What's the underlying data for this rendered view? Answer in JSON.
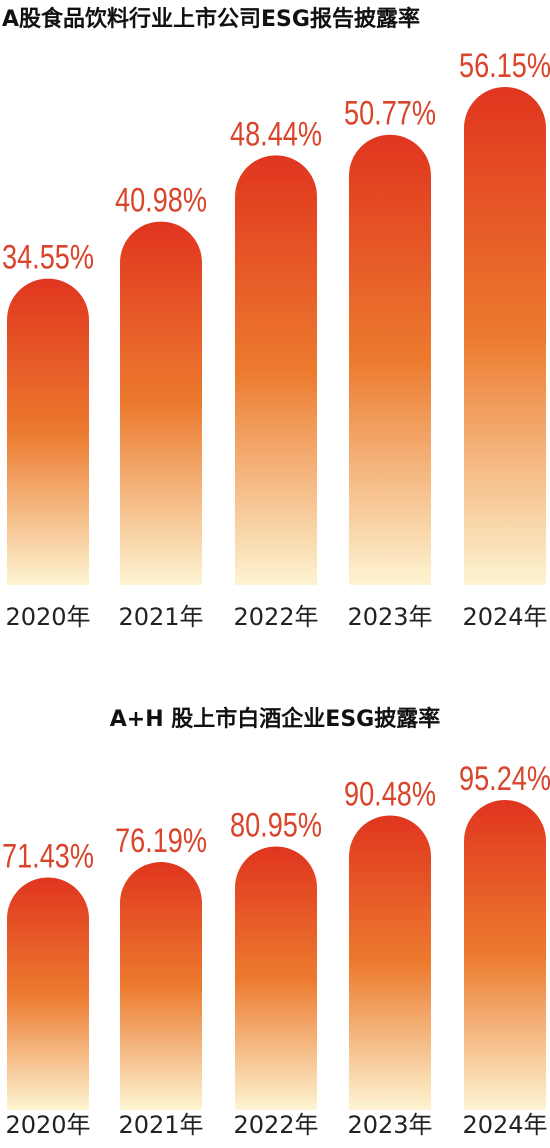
{
  "chart_data": [
    {
      "type": "bar",
      "title": "A股食品饮料行业上市公司ESG报告披露率",
      "categories": [
        "2020年",
        "2021年",
        "2022年",
        "2023年",
        "2024年"
      ],
      "values": [
        34.55,
        40.98,
        48.44,
        50.77,
        56.15
      ],
      "value_labels": [
        "34.55%",
        "40.98%",
        "48.44%",
        "50.77%",
        "56.15%"
      ],
      "gradient": [
        "#e0351f",
        "#ec7a2e",
        "#fdf4d2"
      ],
      "label_color": "#d9452b"
    },
    {
      "type": "bar",
      "title": "A+H 股上市白酒企业ESG披露率",
      "categories": [
        "2020年",
        "2021年",
        "2022年",
        "2023年",
        "2024年"
      ],
      "values": [
        71.43,
        76.19,
        80.95,
        90.48,
        95.24
      ],
      "value_labels": [
        "71.43%",
        "76.19%",
        "80.95%",
        "90.48%",
        "95.24%"
      ],
      "gradient": [
        "#e0351f",
        "#ec7a2e",
        "#fdf4d2"
      ],
      "label_color": "#d9452b"
    }
  ]
}
